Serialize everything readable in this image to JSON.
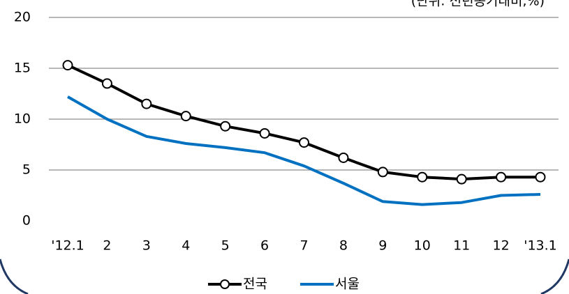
{
  "chart_data": {
    "type": "line",
    "annotation": "(단위: 전년동기대비,%)",
    "categories": [
      "'12.1",
      "2",
      "3",
      "4",
      "5",
      "6",
      "7",
      "8",
      "9",
      "10",
      "11",
      "12",
      "'13.1"
    ],
    "series": [
      {
        "name": "전국",
        "color": "#000000",
        "marker": "circle",
        "values": [
          15.3,
          13.5,
          11.5,
          10.3,
          9.3,
          8.6,
          7.7,
          6.2,
          4.8,
          4.3,
          4.1,
          4.3,
          4.3
        ]
      },
      {
        "name": "서울",
        "color": "#0070c0",
        "values": [
          12.2,
          10.0,
          8.3,
          7.6,
          7.2,
          6.7,
          5.4,
          3.7,
          1.9,
          1.6,
          1.8,
          2.5,
          2.6
        ]
      }
    ],
    "ylim": [
      0,
      20
    ],
    "yticks": [
      0,
      5,
      10,
      15,
      20
    ],
    "grid": true,
    "legend": "bottom"
  }
}
